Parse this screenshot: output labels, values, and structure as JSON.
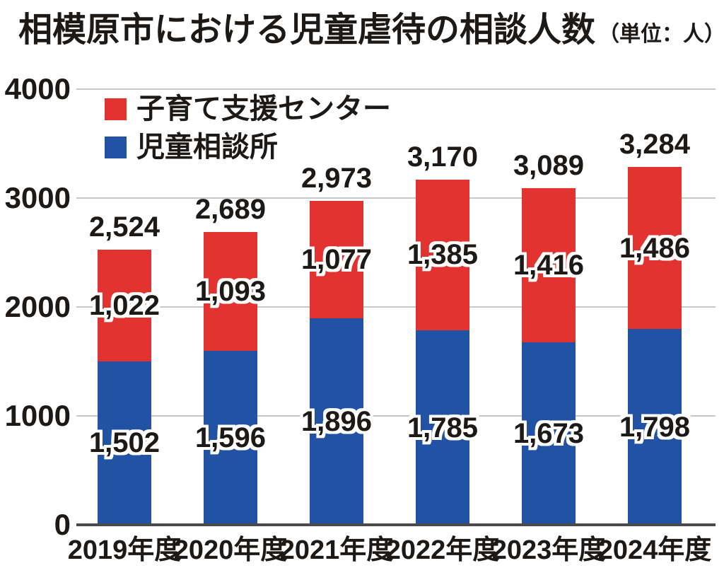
{
  "title": {
    "text": "相模原市における児童虐待の相談人数",
    "unit": "（単位：人）"
  },
  "chart_data": {
    "type": "bar",
    "stacked": true,
    "title": "相模原市における児童虐待の相談人数",
    "unit_note": "（単位：人）",
    "categories": [
      "2019年度",
      "2020年度",
      "2021年度",
      "2022年度",
      "2023年度",
      "2024年度"
    ],
    "series": [
      {
        "name": "児童相談所",
        "color": "#2152a4",
        "values": [
          1502,
          1596,
          1896,
          1785,
          1673,
          1798
        ],
        "labels": [
          "1,502",
          "1,596",
          "1,896",
          "1,785",
          "1,673",
          "1,798"
        ]
      },
      {
        "name": "子育て支援センター",
        "color": "#e23331",
        "values": [
          1022,
          1093,
          1077,
          1385,
          1416,
          1486
        ],
        "labels": [
          "1,022",
          "1,093",
          "1,077",
          "1,385",
          "1,416",
          "1,486"
        ]
      }
    ],
    "totals": [
      2524,
      2689,
      2973,
      3170,
      3089,
      3284
    ],
    "total_labels": [
      "2,524",
      "2,689",
      "2,973",
      "3,170",
      "3,089",
      "3,284"
    ],
    "ylim": [
      0,
      4000
    ],
    "yticks": [
      0,
      1000,
      2000,
      3000,
      4000
    ],
    "grid": true,
    "legend_position": "top-left",
    "legend_order": [
      "子育て支援センター",
      "児童相談所"
    ]
  },
  "colors": {
    "red": "#e23331",
    "blue": "#2152a4",
    "gridline": "#c7c7c7",
    "baseline": "#4a4a4a",
    "text": "#1c1917"
  }
}
